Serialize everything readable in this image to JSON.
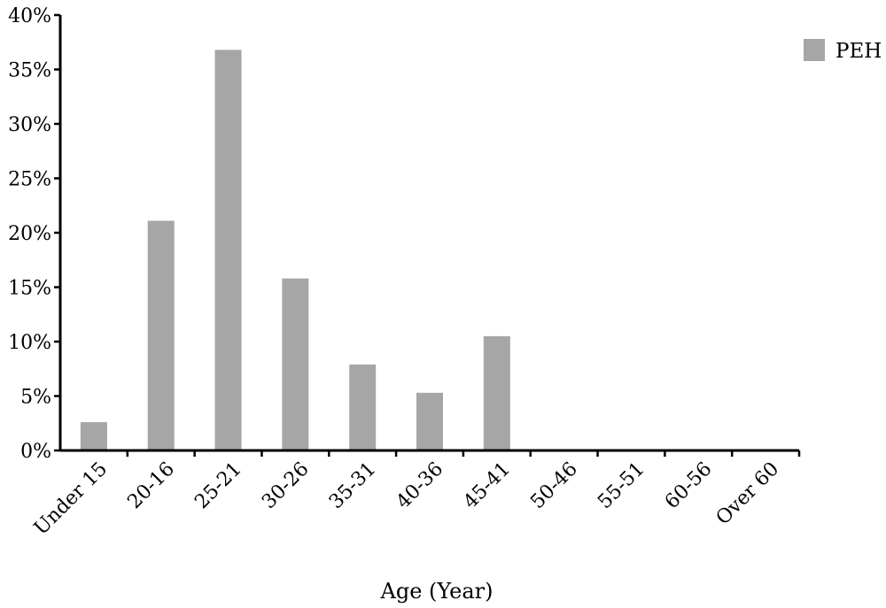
{
  "chart_data": {
    "type": "bar",
    "title": "",
    "xlabel": "Age (Year)",
    "ylabel": "",
    "categories": [
      "Under 15",
      "20-16",
      "25-21",
      "30-26",
      "35-31",
      "40-36",
      "45-41",
      "50-46",
      "55-51",
      "60-56",
      "Over 60"
    ],
    "series": [
      {
        "name": "PEH",
        "color": "#a6a6a6",
        "values": [
          2.6,
          21.1,
          36.8,
          15.8,
          7.9,
          5.3,
          10.5,
          0,
          0,
          0,
          0
        ]
      }
    ],
    "ylim": [
      0,
      40
    ],
    "yticks": [
      0,
      5,
      10,
      15,
      20,
      25,
      30,
      35,
      40
    ],
    "ytick_labels": [
      "0%",
      "5%",
      "10%",
      "15%",
      "20%",
      "25%",
      "30%",
      "35%",
      "40%"
    ],
    "grid": false,
    "legend_position": "top-right"
  }
}
